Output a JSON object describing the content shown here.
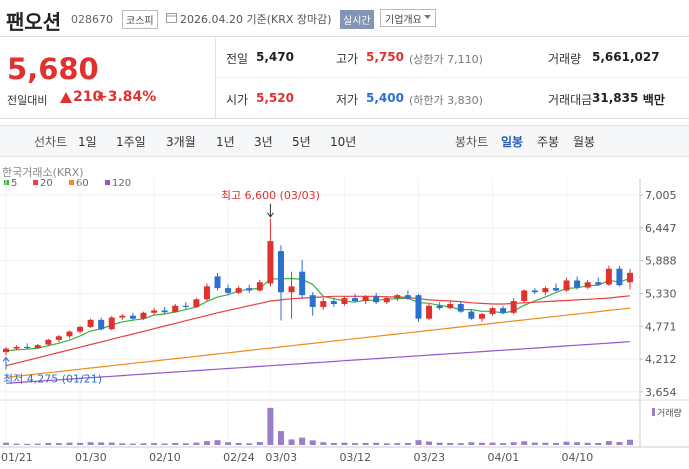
{
  "header": {
    "name": "팬오션",
    "code": "028670",
    "market": "코스피",
    "date": "2026.04.20 기준(KRX 장마감)",
    "realtime": "실시간",
    "overview": "기업개요"
  },
  "quote": {
    "price": "5,680",
    "change_label": "전일대비",
    "change": "210",
    "change_pct": "+3.84%",
    "color": "#e0312f"
  },
  "stats": [
    [
      {
        "label": "전일",
        "value": "5,470"
      },
      {
        "label": "고가",
        "value": "5,750",
        "note": "(상한가 7,110)",
        "color": "#e0312f"
      },
      {
        "label": "거래량",
        "value": "5,661,027"
      }
    ],
    [
      {
        "label": "시가",
        "value": "5,520",
        "color": "#e0312f"
      },
      {
        "label": "저가",
        "value": "5,400",
        "note": "(하한가 3,830)",
        "color": "#2b6fcf"
      },
      {
        "label": "거래대금",
        "value": "31,835",
        "unit": "백만"
      }
    ]
  ],
  "toolbar": {
    "line_chart": "선차트",
    "line_periods": [
      "1일",
      "1주일",
      "3개월",
      "1년",
      "3년",
      "5년",
      "10년"
    ],
    "candle_chart": "봉차트",
    "candle_periods": [
      "일봉",
      "주봉",
      "월봉"
    ],
    "active_candle_index": 0
  },
  "chart_data": {
    "type": "candlestick",
    "source": "한국거래소(KRX)",
    "categories": [
      "01/21",
      null,
      null,
      null,
      null,
      null,
      null,
      "01/30",
      null,
      null,
      null,
      null,
      null,
      null,
      "02/10",
      null,
      null,
      null,
      null,
      null,
      null,
      "02/24",
      null,
      null,
      null,
      "03/03",
      null,
      null,
      null,
      null,
      null,
      null,
      "03/12",
      null,
      null,
      null,
      null,
      null,
      null,
      "03/23",
      null,
      null,
      null,
      null,
      null,
      null,
      "04/01",
      null,
      null,
      null,
      null,
      null,
      null,
      "04/10",
      null,
      null,
      null,
      null,
      null,
      null
    ],
    "up_color": "#e0312f",
    "down_color": "#2b6fcf",
    "open": [
      4330,
      4390,
      4420,
      4400,
      4460,
      4540,
      4600,
      4680,
      4760,
      4880,
      4720,
      4920,
      4950,
      4900,
      5000,
      5040,
      5010,
      5120,
      5100,
      5230,
      5620,
      5420,
      5340,
      5420,
      5380,
      5500,
      6050,
      5350,
      5700,
      5300,
      5100,
      5200,
      5150,
      5250,
      5200,
      5280,
      5180,
      5250,
      5300,
      5300,
      4900,
      5120,
      5080,
      5150,
      5020,
      4900,
      4980,
      5080,
      5000,
      5200,
      5380,
      5350,
      5420,
      5380,
      5550,
      5430,
      5520,
      5480,
      5750,
      5520
    ],
    "high": [
      4420,
      4450,
      4480,
      4470,
      4560,
      4620,
      4700,
      4780,
      4900,
      4920,
      4950,
      4980,
      5000,
      5020,
      5080,
      5100,
      5150,
      5180,
      5250,
      5500,
      5680,
      5480,
      5460,
      5480,
      5560,
      6600,
      6150,
      5700,
      5900,
      5350,
      5250,
      5260,
      5280,
      5320,
      5300,
      5340,
      5280,
      5320,
      5380,
      5320,
      5150,
      5180,
      5200,
      5200,
      5060,
      5000,
      5100,
      5120,
      5250,
      5400,
      5420,
      5450,
      5500,
      5600,
      5620,
      5560,
      5600,
      5800,
      5800,
      5750
    ],
    "low": [
      4275,
      4360,
      4380,
      4380,
      4440,
      4500,
      4560,
      4650,
      4740,
      4700,
      4700,
      4880,
      4870,
      4880,
      4960,
      4980,
      5000,
      5060,
      5080,
      5200,
      5380,
      5300,
      5320,
      5340,
      5360,
      5450,
      4870,
      4900,
      5250,
      4950,
      5050,
      5100,
      5120,
      5180,
      5150,
      5150,
      5150,
      5200,
      5220,
      4850,
      4880,
      5050,
      5060,
      5000,
      4880,
      4850,
      4950,
      4980,
      4980,
      5180,
      5320,
      5300,
      5360,
      5360,
      5400,
      5400,
      5460,
      5460,
      5450,
      5400
    ],
    "close": [
      4390,
      4420,
      4400,
      4450,
      4540,
      4600,
      4680,
      4760,
      4880,
      4720,
      4920,
      4950,
      4900,
      5000,
      5040,
      5010,
      5120,
      5100,
      5230,
      5450,
      5420,
      5340,
      5420,
      5380,
      5520,
      6220,
      5350,
      5450,
      5300,
      5100,
      5200,
      5150,
      5250,
      5200,
      5280,
      5180,
      5250,
      5300,
      5240,
      4900,
      5120,
      5080,
      5150,
      5020,
      4900,
      4980,
      5080,
      5000,
      5200,
      5380,
      5350,
      5420,
      5380,
      5550,
      5430,
      5520,
      5480,
      5750,
      5470,
      5680
    ],
    "series": [
      {
        "name": "5",
        "color": "#3cb043",
        "values": [
          4350,
          4370,
          4380,
          4400,
          4440,
          4482,
          4534,
          4606,
          4692,
          4728,
          4792,
          4846,
          4874,
          4898,
          4962,
          4980,
          5014,
          5054,
          5100,
          5190,
          5268,
          5308,
          5372,
          5402,
          5416,
          5576,
          5578,
          5584,
          5568,
          5484,
          5280,
          5240,
          5200,
          5180,
          5216,
          5212,
          5232,
          5242,
          5250,
          5174,
          5162,
          5128,
          5098,
          5054,
          5054,
          5026,
          5026,
          4996,
          5032,
          5128,
          5202,
          5270,
          5346,
          5416,
          5426,
          5460,
          5472,
          5546,
          5530,
          5580
        ]
      },
      {
        "name": "20",
        "color": "#e8403f",
        "values": [
          4100,
          4145,
          4190,
          4235,
          4280,
          4325,
          4370,
          4415,
          4460,
          4505,
          4550,
          4595,
          4640,
          4685,
          4730,
          4775,
          4820,
          4865,
          4910,
          4955,
          5000,
          5040,
          5080,
          5120,
          5160,
          5200,
          5220,
          5240,
          5250,
          5260,
          5270,
          5280,
          5280,
          5280,
          5280,
          5280,
          5270,
          5270,
          5260,
          5240,
          5220,
          5210,
          5200,
          5190,
          5170,
          5160,
          5150,
          5150,
          5160,
          5170,
          5180,
          5190,
          5200,
          5210,
          5220,
          5230,
          5240,
          5250,
          5270,
          5290
        ]
      },
      {
        "name": "60",
        "color": "#f08b1d",
        "values": [
          3900,
          3920,
          3940,
          3960,
          3980,
          4000,
          4020,
          4040,
          4060,
          4080,
          4100,
          4120,
          4140,
          4160,
          4180,
          4200,
          4220,
          4240,
          4260,
          4280,
          4300,
          4320,
          4340,
          4360,
          4380,
          4400,
          4420,
          4440,
          4460,
          4480,
          4500,
          4520,
          4540,
          4560,
          4580,
          4600,
          4620,
          4640,
          4660,
          4680,
          4700,
          4720,
          4740,
          4760,
          4780,
          4800,
          4820,
          4840,
          4860,
          4880,
          4900,
          4920,
          4940,
          4960,
          4980,
          5000,
          5020,
          5040,
          5060,
          5080
        ]
      },
      {
        "name": "120",
        "color": "#9656c8",
        "values": [
          3800,
          3812,
          3824,
          3836,
          3848,
          3860,
          3872,
          3884,
          3896,
          3908,
          3920,
          3932,
          3944,
          3956,
          3968,
          3980,
          3992,
          4004,
          4016,
          4028,
          4040,
          4052,
          4064,
          4076,
          4088,
          4100,
          4112,
          4124,
          4136,
          4148,
          4160,
          4172,
          4184,
          4196,
          4208,
          4220,
          4232,
          4244,
          4256,
          4268,
          4280,
          4292,
          4304,
          4316,
          4328,
          4340,
          4352,
          4364,
          4376,
          4388,
          4400,
          4412,
          4424,
          4436,
          4448,
          4460,
          4472,
          4484,
          4496,
          4508
        ]
      }
    ],
    "volume": {
      "name": "거래량",
      "color": "#9b7fc6",
      "ylim": [
        0,
        42000000
      ],
      "values": [
        2500000,
        1500000,
        1200000,
        1400000,
        2200000,
        2000000,
        2500000,
        2300000,
        3000000,
        2800000,
        2600000,
        1800000,
        1500000,
        1800000,
        2000000,
        1600000,
        2200000,
        1800000,
        2600000,
        4200000,
        5200000,
        3000000,
        2200000,
        1800000,
        3200000,
        40000000,
        15000000,
        6000000,
        8000000,
        5000000,
        3000000,
        2200000,
        2500000,
        2000000,
        2200000,
        2400000,
        1800000,
        2000000,
        2200000,
        5200000,
        3800000,
        2500000,
        2200000,
        2000000,
        3000000,
        2400000,
        2600000,
        2000000,
        3000000,
        4000000,
        2600000,
        2400000,
        2200000,
        3600000,
        3000000,
        2400000,
        2200000,
        4200000,
        3200000,
        5661027
      ]
    },
    "ylim": [
      3550,
      7175
    ],
    "yticks": [
      {
        "value": 3654,
        "label": "3,654"
      },
      {
        "value": 4212,
        "label": "4,212"
      },
      {
        "value": 4771,
        "label": "4,771"
      },
      {
        "value": 5330,
        "label": "5,330"
      },
      {
        "value": 5888,
        "label": "5,888"
      },
      {
        "value": 6447,
        "label": "6,447"
      },
      {
        "value": 7005,
        "label": "7,005"
      }
    ],
    "grid": true,
    "high_label": "최고 6,600 (03/03)",
    "high_index": 25,
    "low_label": "최저 4,275 (01/21)",
    "low_index": 0
  }
}
